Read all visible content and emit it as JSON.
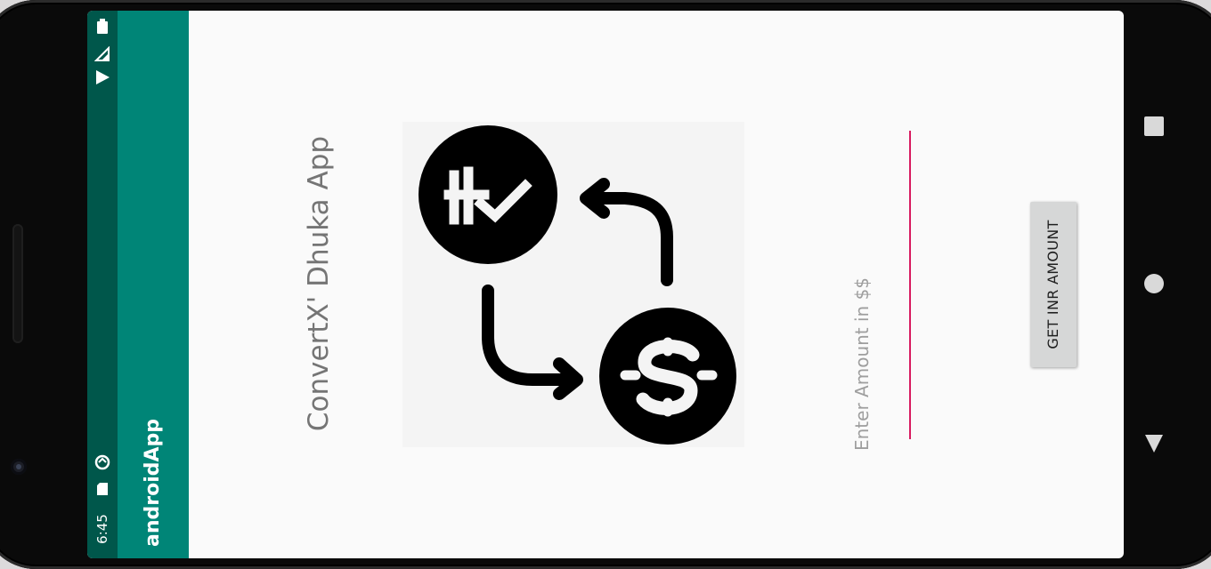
{
  "status_bar": {
    "time": "6:45",
    "icons": [
      "wifi-icon",
      "cellular-signal-icon",
      "battery-icon",
      "sd-card-icon",
      "sync-icon"
    ]
  },
  "app_bar": {
    "title": "androidApp"
  },
  "main": {
    "heading": "ConvertX' Dhuka App",
    "logo": {
      "icons": [
        "rupee-coin-icon",
        "dollar-coin-icon",
        "exchange-arrows-icon"
      ]
    },
    "amount_input": {
      "value": "",
      "placeholder": "Enter Amount in $$"
    },
    "convert_button_label": "GET INR AMOUNT"
  },
  "navigation": {
    "buttons": [
      "overview-button",
      "home-button",
      "back-button"
    ]
  },
  "colors": {
    "status_bar": "#00574b",
    "app_bar": "#008577",
    "accent": "#d81b60",
    "background": "#fafafa"
  }
}
